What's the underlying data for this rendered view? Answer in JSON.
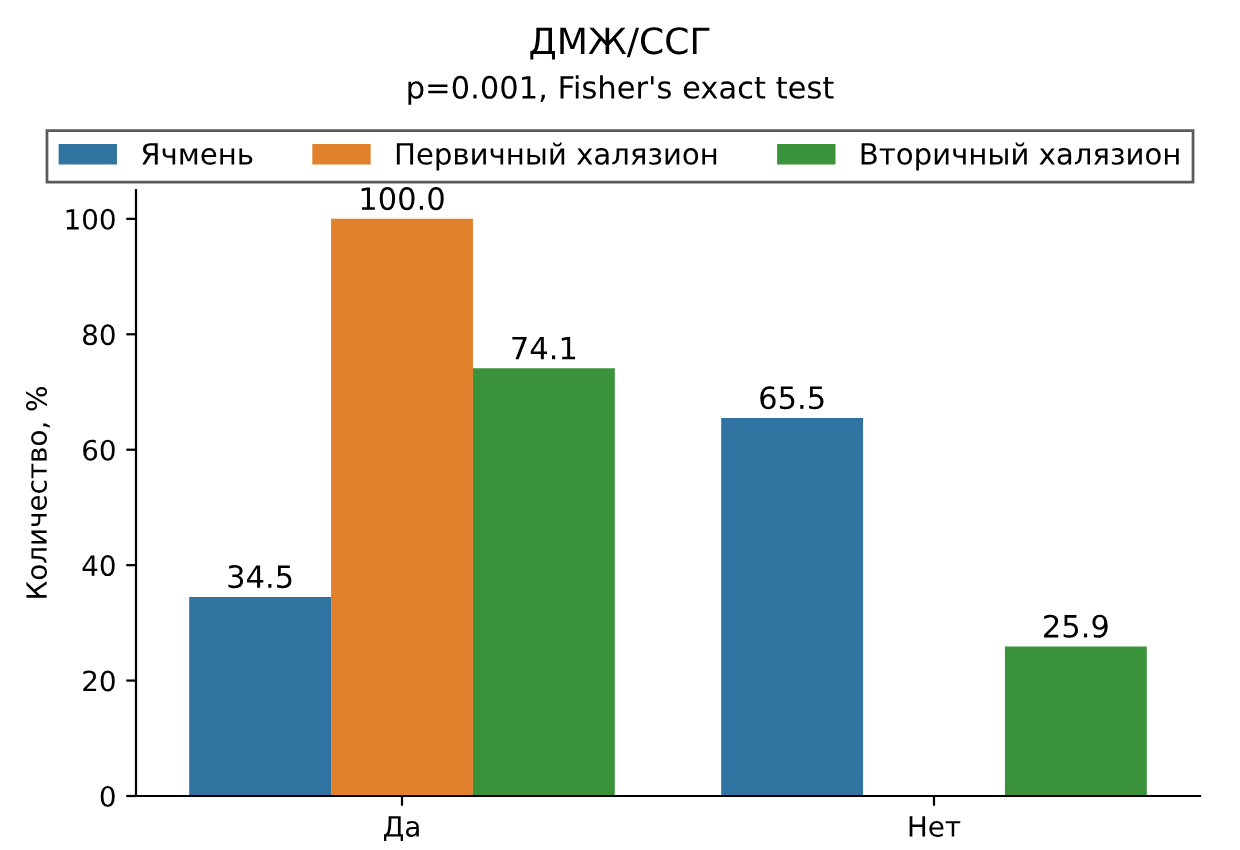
{
  "chart_data": {
    "type": "bar",
    "title": "ДМЖ/ССГ",
    "subtitle": "p=0.001, Fisher's exact test",
    "ylabel": "Количество, %",
    "categories": [
      "Да",
      "Нет"
    ],
    "series": [
      {
        "name": "Ячмень",
        "color": "#3274a1",
        "values": [
          34.5,
          65.5
        ],
        "value_labels": [
          "34.5",
          "65.5"
        ]
      },
      {
        "name": "Первичный халязион",
        "color": "#e1812c",
        "values": [
          100.0,
          null
        ],
        "value_labels": [
          "100.0",
          null
        ]
      },
      {
        "name": "Вторичный халязион",
        "color": "#3a923a",
        "values": [
          74.1,
          25.9
        ],
        "value_labels": [
          "74.1",
          "25.9"
        ]
      }
    ],
    "ylim": [
      0,
      105
    ],
    "yticks": [
      0,
      20,
      40,
      60,
      80,
      100
    ],
    "grid": false,
    "legend": "top"
  }
}
